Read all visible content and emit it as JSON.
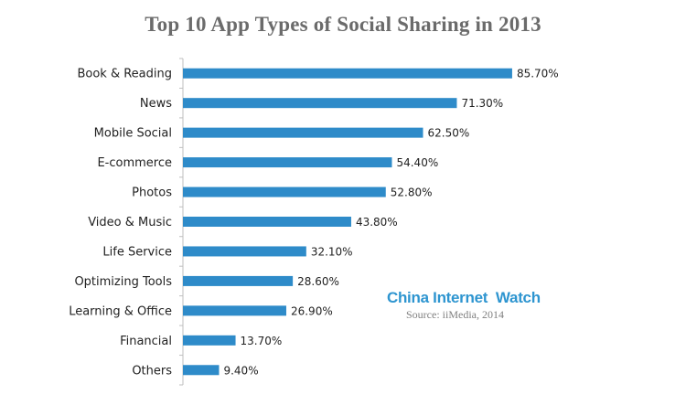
{
  "chart_data": {
    "type": "bar",
    "orientation": "horizontal",
    "title": "Top 10 App Types of Social Sharing in 2013",
    "categories": [
      "Book & Reading",
      "News",
      "Mobile Social",
      "E-commerce",
      "Photos",
      "Video & Music",
      "Life Service",
      "Optimizing Tools",
      "Learning & Office",
      "Financial",
      "Others"
    ],
    "values": [
      85.7,
      71.3,
      62.5,
      54.4,
      52.8,
      43.8,
      32.1,
      28.6,
      26.9,
      13.7,
      9.4
    ],
    "value_labels": [
      "85.70%",
      "71.30%",
      "62.50%",
      "54.40%",
      "52.80%",
      "43.80%",
      "32.10%",
      "28.60%",
      "26.90%",
      "13.70%",
      "9.40%"
    ],
    "xlim": [
      0,
      100
    ],
    "grid": false,
    "bar_color": "#2e8bc9"
  },
  "watermark": "China Internet  Watch",
  "source": "Source: iiMedia, 2014",
  "colors": {
    "watermark": "#2e95d0",
    "title": "#6b6b6b"
  }
}
